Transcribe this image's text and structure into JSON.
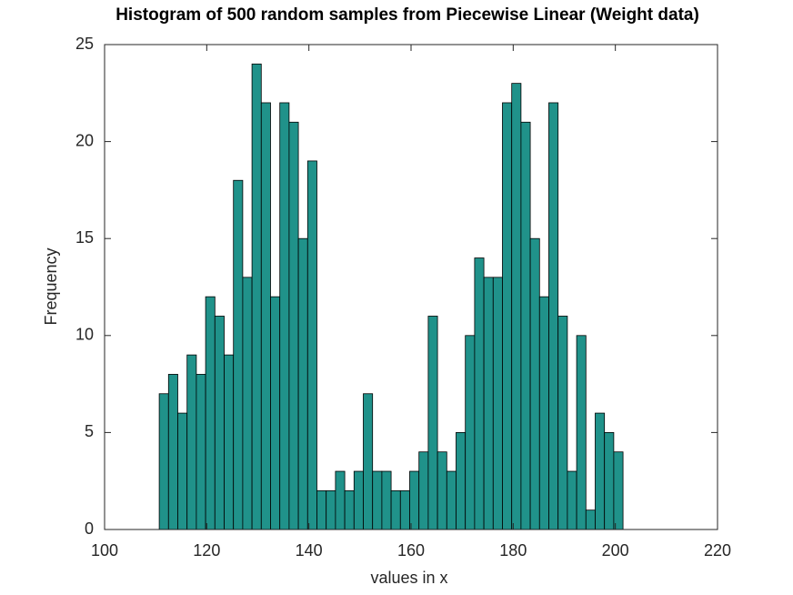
{
  "chart_data": {
    "type": "histogram",
    "title": "Histogram of 500 random samples from Piecewise Linear (Weight data)",
    "xlabel": "values in x",
    "ylabel": "Frequency",
    "bins": [
      110.7,
      112.516,
      114.332,
      116.148,
      117.964,
      119.78,
      121.596,
      123.412,
      125.228,
      127.044,
      128.86,
      130.676,
      132.492,
      134.308,
      136.124,
      137.94,
      139.756,
      141.572,
      143.388,
      145.204,
      147.02,
      148.836,
      150.652,
      152.468,
      154.284,
      156.1,
      157.916,
      159.732,
      161.548,
      163.364,
      165.18,
      166.996,
      168.812,
      170.628,
      172.444,
      174.26,
      176.076,
      177.892,
      179.708,
      181.524,
      183.34,
      185.156,
      186.972,
      188.788,
      190.604,
      192.42,
      194.236,
      196.052,
      197.868,
      199.684,
      201.5
    ],
    "values": [
      7,
      8,
      6,
      9,
      8,
      12,
      11,
      9,
      18,
      13,
      24,
      22,
      12,
      22,
      21,
      15,
      19,
      2,
      2,
      3,
      2,
      3,
      7,
      3,
      3,
      2,
      2,
      3,
      4,
      11,
      4,
      3,
      5,
      10,
      14,
      13,
      13,
      22,
      23,
      21,
      15,
      12,
      22,
      11,
      3,
      10,
      1,
      6,
      5,
      4
    ],
    "color": "#20928a",
    "xlim": [
      100,
      220
    ],
    "xticks": [
      100,
      120,
      140,
      160,
      180,
      200,
      220
    ],
    "ylim": [
      0,
      25
    ],
    "yticks": [
      0,
      5,
      10,
      15,
      20,
      25
    ]
  }
}
